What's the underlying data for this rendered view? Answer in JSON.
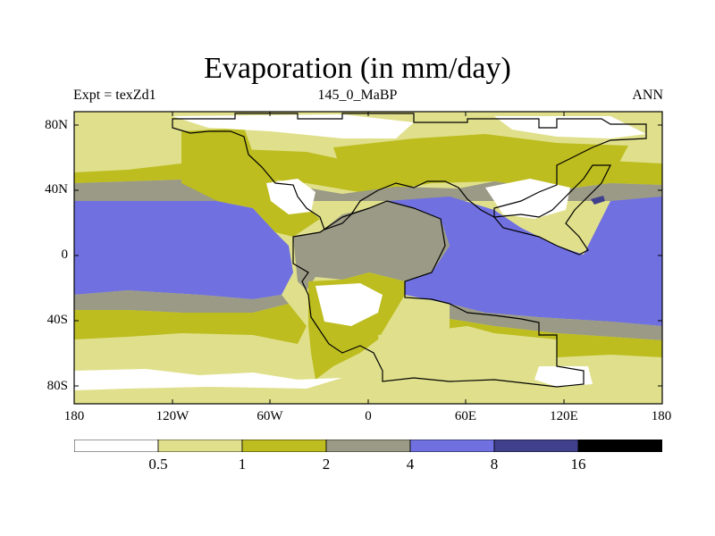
{
  "title": "Evaporation (in mm/day)",
  "subtitle_left": "Expt = texZd1",
  "subtitle_center": "145_0_MaBP",
  "subtitle_right": "ANN",
  "y_ticks": [
    "80N",
    "40N",
    "0",
    "40S",
    "80S"
  ],
  "x_ticks": [
    "180",
    "120W",
    "60W",
    "0",
    "60E",
    "120E",
    "180"
  ],
  "legend": {
    "levels": [
      "0.5",
      "1",
      "2",
      "4",
      "8",
      "16"
    ],
    "colors": [
      "#ffffff",
      "#e0e08c",
      "#bdbd20",
      "#9a9a86",
      "#7070e0",
      "#40408c",
      "#000000"
    ]
  }
}
